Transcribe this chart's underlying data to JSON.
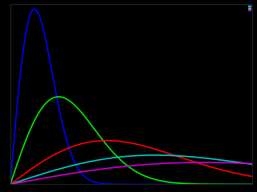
{
  "background_color": "#000000",
  "xlim": [
    0,
    5
  ],
  "ylim": [
    0,
    1.25
  ],
  "sigma_values": [
    0.5,
    1.0,
    2.0,
    3.0,
    4.0
  ],
  "colors": [
    "#0000ff",
    "#00ee00",
    "#ff0000",
    "#00cccc",
    "#cc00cc"
  ],
  "linewidth": 1.2,
  "figsize": [
    3.2,
    2.4
  ],
  "dpi": 100
}
